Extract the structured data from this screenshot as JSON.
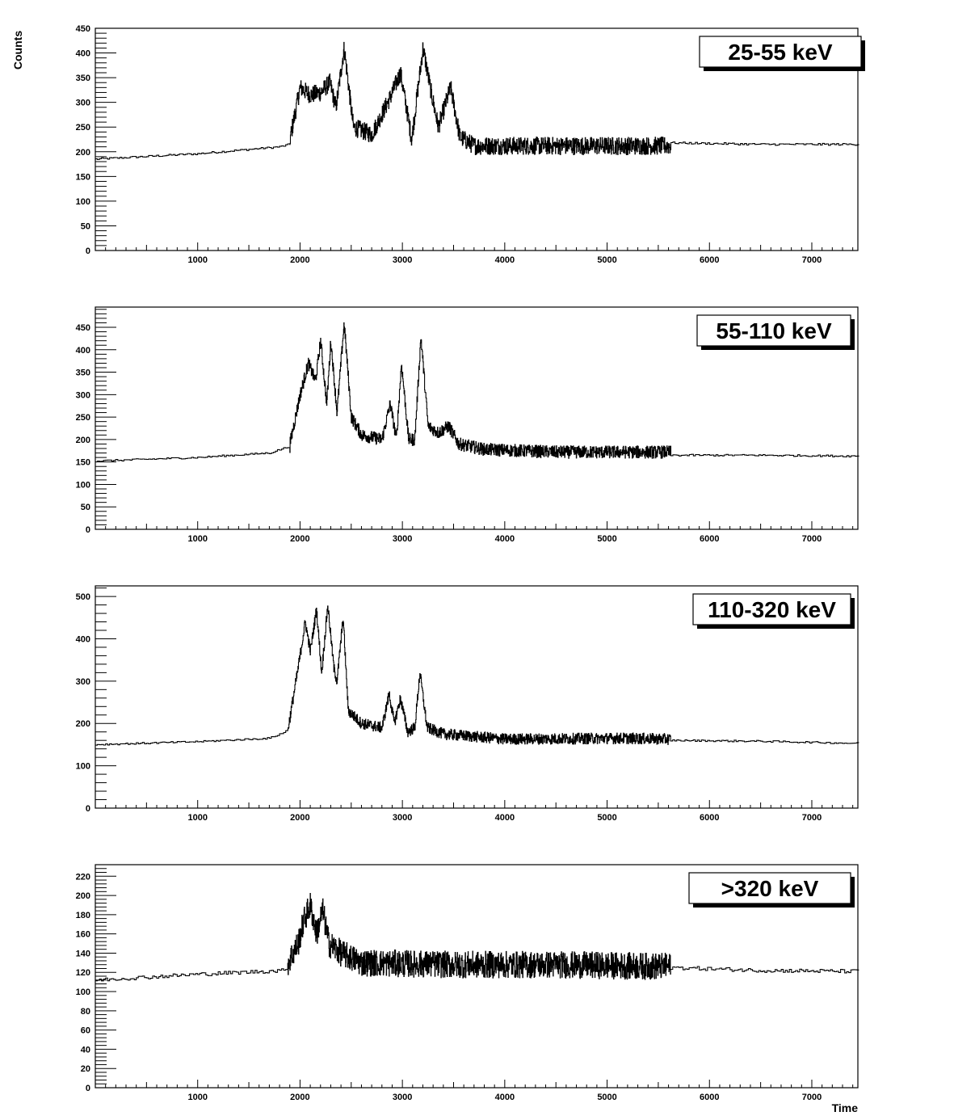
{
  "figure": {
    "ylabel": "Counts",
    "xlabel": "Time"
  },
  "chart_data": [
    {
      "type": "line",
      "legend": "25-55 keV",
      "xlim": [
        0,
        7450
      ],
      "ylim": [
        0,
        450
      ],
      "x_ticks": [
        1000,
        2000,
        3000,
        4000,
        5000,
        6000,
        7000
      ],
      "y_ticks": [
        0,
        50,
        100,
        150,
        200,
        250,
        300,
        350,
        400,
        450
      ],
      "grid": false,
      "legend_position": "top-right",
      "background_points": [
        [
          0,
          185
        ],
        [
          1000,
          196
        ],
        [
          1800,
          210
        ],
        [
          1900,
          215
        ]
      ],
      "tail_points": [
        [
          5620,
          218
        ],
        [
          6500,
          215
        ],
        [
          7450,
          215
        ]
      ],
      "features": [
        [
          1900,
          225
        ],
        [
          2000,
          330
        ],
        [
          2100,
          315
        ],
        [
          2200,
          320
        ],
        [
          2290,
          340
        ],
        [
          2350,
          290
        ],
        [
          2430,
          410
        ],
        [
          2520,
          250
        ],
        [
          2700,
          235
        ],
        [
          2880,
          310
        ],
        [
          2980,
          360
        ],
        [
          3090,
          225
        ],
        [
          3200,
          410
        ],
        [
          3280,
          320
        ],
        [
          3350,
          250
        ],
        [
          3470,
          330
        ],
        [
          3560,
          230
        ],
        [
          3700,
          212
        ],
        [
          4500,
          212
        ],
        [
          5620,
          212
        ]
      ],
      "noise_region": [
        1900,
        5620
      ],
      "noise_amp": 18
    },
    {
      "type": "line",
      "legend": "55-110 keV",
      "xlim": [
        0,
        7450
      ],
      "ylim": [
        0,
        495
      ],
      "x_ticks": [
        1000,
        2000,
        3000,
        4000,
        5000,
        6000,
        7000
      ],
      "y_ticks": [
        0,
        50,
        100,
        150,
        200,
        250,
        300,
        350,
        400,
        450
      ],
      "grid": false,
      "legend_position": "top-right",
      "background_points": [
        [
          0,
          152
        ],
        [
          1000,
          160
        ],
        [
          1700,
          170
        ],
        [
          1900,
          185
        ]
      ],
      "tail_points": [
        [
          5620,
          165
        ],
        [
          6500,
          165
        ],
        [
          7450,
          163
        ]
      ],
      "features": [
        [
          1900,
          190
        ],
        [
          2000,
          300
        ],
        [
          2080,
          370
        ],
        [
          2150,
          330
        ],
        [
          2200,
          420
        ],
        [
          2260,
          280
        ],
        [
          2300,
          420
        ],
        [
          2360,
          260
        ],
        [
          2430,
          460
        ],
        [
          2500,
          250
        ],
        [
          2600,
          210
        ],
        [
          2800,
          200
        ],
        [
          2880,
          280
        ],
        [
          2940,
          200
        ],
        [
          2990,
          370
        ],
        [
          3060,
          200
        ],
        [
          3120,
          200
        ],
        [
          3180,
          430
        ],
        [
          3250,
          230
        ],
        [
          3350,
          215
        ],
        [
          3450,
          230
        ],
        [
          3550,
          190
        ],
        [
          3800,
          178
        ],
        [
          4500,
          172
        ],
        [
          5620,
          172
        ]
      ],
      "noise_region": [
        1900,
        5620
      ],
      "noise_amp": 14
    },
    {
      "type": "line",
      "legend": "110-320 keV",
      "xlim": [
        0,
        7450
      ],
      "ylim": [
        0,
        525
      ],
      "x_ticks": [
        1000,
        2000,
        3000,
        4000,
        5000,
        6000,
        7000
      ],
      "y_ticks": [
        0,
        100,
        200,
        300,
        400,
        500
      ],
      "grid": false,
      "legend_position": "top-right",
      "background_points": [
        [
          0,
          150
        ],
        [
          1000,
          157
        ],
        [
          1700,
          165
        ],
        [
          1850,
          180
        ]
      ],
      "tail_points": [
        [
          5620,
          160
        ],
        [
          6500,
          158
        ],
        [
          7450,
          153
        ]
      ],
      "features": [
        [
          1880,
          185
        ],
        [
          1980,
          330
        ],
        [
          2050,
          440
        ],
        [
          2100,
          370
        ],
        [
          2160,
          470
        ],
        [
          2210,
          320
        ],
        [
          2270,
          480
        ],
        [
          2330,
          330
        ],
        [
          2360,
          300
        ],
        [
          2420,
          450
        ],
        [
          2470,
          230
        ],
        [
          2600,
          200
        ],
        [
          2800,
          190
        ],
        [
          2870,
          270
        ],
        [
          2920,
          200
        ],
        [
          2980,
          260
        ],
        [
          3050,
          180
        ],
        [
          3120,
          190
        ],
        [
          3170,
          320
        ],
        [
          3240,
          190
        ],
        [
          3400,
          175
        ],
        [
          4000,
          163
        ],
        [
          5150,
          165
        ],
        [
          5620,
          163
        ]
      ],
      "noise_region": [
        1880,
        5620
      ],
      "noise_amp": 13
    },
    {
      "type": "line",
      "legend": ">320 keV",
      "xlim": [
        0,
        7450
      ],
      "ylim": [
        0,
        232
      ],
      "x_ticks": [
        1000,
        2000,
        3000,
        4000,
        5000,
        6000,
        7000
      ],
      "y_ticks": [
        0,
        20,
        40,
        60,
        80,
        100,
        120,
        140,
        160,
        180,
        200,
        220
      ],
      "grid": false,
      "legend_position": "top-right",
      "background_points": [
        [
          0,
          112
        ],
        [
          1000,
          118
        ],
        [
          1850,
          122
        ]
      ],
      "tail_points": [
        [
          5620,
          125
        ],
        [
          6500,
          122
        ],
        [
          7450,
          121
        ]
      ],
      "features": [
        [
          1880,
          130
        ],
        [
          1980,
          150
        ],
        [
          2040,
          175
        ],
        [
          2100,
          190
        ],
        [
          2160,
          160
        ],
        [
          2220,
          185
        ],
        [
          2280,
          150
        ],
        [
          2400,
          140
        ],
        [
          2600,
          130
        ],
        [
          3500,
          128
        ],
        [
          4500,
          128
        ],
        [
          5620,
          126
        ]
      ],
      "noise_region": [
        1880,
        5620
      ],
      "noise_amp": 14
    }
  ]
}
